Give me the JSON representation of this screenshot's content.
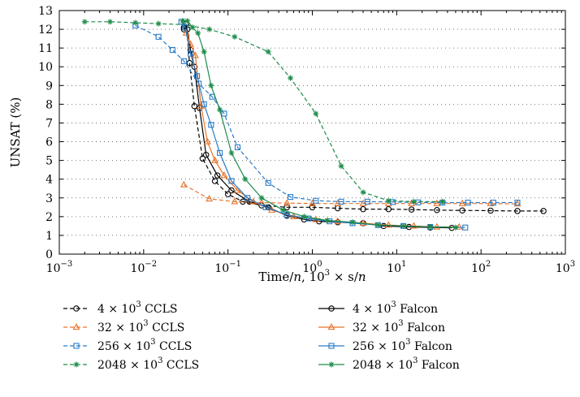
{
  "chart_data": {
    "type": "line",
    "xlabel": {
      "prefix": "Time/",
      "var": "n",
      "middle": ", 10",
      "exp": "3",
      "suffix": " × s/",
      "var2": "n"
    },
    "ylabel": "UNSAT (%)",
    "xscale": "log",
    "xlim": [
      0.001,
      1000
    ],
    "ylim": [
      0,
      13
    ],
    "grid": "dotted horizontal",
    "x_ticks": [
      {
        "value": 0.001,
        "base": "10",
        "exp": "−3"
      },
      {
        "value": 0.01,
        "base": "10",
        "exp": "−2"
      },
      {
        "value": 0.1,
        "base": "10",
        "exp": "−1"
      },
      {
        "value": 1,
        "base": "10",
        "exp": "0"
      },
      {
        "value": 10,
        "base": "10",
        "exp": "1"
      },
      {
        "value": 100,
        "base": "10",
        "exp": "2"
      },
      {
        "value": 1000,
        "base": "10",
        "exp": "3"
      }
    ],
    "y_ticks": [
      "0",
      "1",
      "2",
      "3",
      "4",
      "5",
      "6",
      "7",
      "8",
      "9",
      "10",
      "11",
      "12",
      "13"
    ],
    "legend_position": "bottom",
    "series": [
      {
        "name_pre": "4 × 10",
        "name_exp": "3",
        "name_post": " CCLS",
        "color": "#000000",
        "dash": true,
        "marker": "circle",
        "x": [
          0.03,
          0.032,
          0.035,
          0.04,
          0.05,
          0.07,
          0.1,
          0.15,
          0.25,
          0.5,
          1,
          2,
          4,
          8,
          15,
          30,
          60,
          130,
          270,
          550
        ],
        "y": [
          12.0,
          12.3,
          10.2,
          7.9,
          5.1,
          3.9,
          3.2,
          2.8,
          2.6,
          2.5,
          2.5,
          2.45,
          2.4,
          2.4,
          2.38,
          2.35,
          2.33,
          2.32,
          2.3,
          2.3
        ]
      },
      {
        "name_pre": "32 × 10",
        "name_exp": "3",
        "name_post": " CCLS",
        "color": "#e8732a",
        "dash": true,
        "marker": "triangle",
        "x": [
          0.03,
          0.06,
          0.12,
          0.25,
          0.5,
          1,
          2,
          4,
          8,
          15,
          30,
          60,
          130,
          270
        ],
        "y": [
          3.7,
          2.95,
          2.8,
          2.75,
          2.72,
          2.7,
          2.7,
          2.7,
          2.7,
          2.7,
          2.7,
          2.7,
          2.7,
          2.68
        ]
      },
      {
        "name_pre": "256 × 10",
        "name_exp": "3",
        "name_post": " CCLS",
        "color": "#2b7cc7",
        "dash": true,
        "marker": "square",
        "x": [
          0.008,
          0.015,
          0.022,
          0.03,
          0.045,
          0.065,
          0.09,
          0.13,
          0.3,
          0.55,
          1.1,
          2.2,
          4.5,
          9,
          18,
          35,
          70,
          140,
          270
        ],
        "y": [
          12.2,
          11.6,
          10.9,
          10.3,
          9.1,
          8.4,
          7.5,
          5.7,
          3.8,
          3.05,
          2.85,
          2.8,
          2.8,
          2.78,
          2.76,
          2.75,
          2.75,
          2.75,
          2.75
        ]
      },
      {
        "name_pre": "2048 × 10",
        "name_exp": "3",
        "name_post": " CCLS",
        "color": "#1d8c4a",
        "dash": true,
        "marker": "star",
        "x": [
          0.002,
          0.004,
          0.008,
          0.015,
          0.03,
          0.06,
          0.12,
          0.3,
          0.55,
          1.1,
          2.2,
          4,
          8,
          16,
          35
        ],
        "y": [
          12.4,
          12.4,
          12.35,
          12.3,
          12.25,
          12.0,
          11.6,
          10.8,
          9.4,
          7.5,
          4.7,
          3.3,
          2.85,
          2.8,
          2.8
        ]
      },
      {
        "name_pre": "4 × 10",
        "name_exp": "3",
        "name_post": " Falcon",
        "color": "#000000",
        "dash": false,
        "marker": "circle",
        "x": [
          0.03,
          0.033,
          0.036,
          0.04,
          0.046,
          0.055,
          0.075,
          0.11,
          0.18,
          0.3,
          0.5,
          0.8,
          1.2,
          2,
          4,
          7,
          14,
          25,
          45
        ],
        "y": [
          12.1,
          12.0,
          10.9,
          10.0,
          7.8,
          5.3,
          4.2,
          3.4,
          2.8,
          2.5,
          2.05,
          1.85,
          1.75,
          1.7,
          1.65,
          1.5,
          1.45,
          1.42,
          1.4
        ]
      },
      {
        "name_pre": "32 × 10",
        "name_exp": "3",
        "name_post": " Falcon",
        "color": "#e8732a",
        "dash": false,
        "marker": "triangle",
        "x": [
          0.032,
          0.036,
          0.041,
          0.048,
          0.057,
          0.07,
          0.09,
          0.13,
          0.2,
          0.33,
          0.6,
          1.1,
          2,
          4,
          8,
          16,
          30,
          55
        ],
        "y": [
          11.8,
          11.2,
          10.6,
          7.9,
          6.0,
          5.0,
          4.2,
          3.4,
          2.8,
          2.35,
          2.0,
          1.85,
          1.75,
          1.65,
          1.55,
          1.5,
          1.45,
          1.45
        ]
      },
      {
        "name_pre": "256 × 10",
        "name_exp": "3",
        "name_post": " Falcon",
        "color": "#2b7cc7",
        "dash": false,
        "marker": "square",
        "x": [
          0.028,
          0.031,
          0.036,
          0.043,
          0.052,
          0.063,
          0.08,
          0.11,
          0.17,
          0.28,
          0.5,
          0.9,
          1.6,
          3,
          6,
          12,
          25,
          65
        ],
        "y": [
          12.4,
          12.1,
          10.7,
          9.5,
          8.0,
          6.9,
          5.4,
          3.9,
          3.0,
          2.5,
          2.1,
          1.9,
          1.75,
          1.65,
          1.55,
          1.5,
          1.45,
          1.42
        ]
      },
      {
        "name_pre": "2048 × 10",
        "name_exp": "3",
        "name_post": " Falcon",
        "color": "#1d8c4a",
        "dash": false,
        "marker": "star",
        "x": [
          0.029,
          0.033,
          0.038,
          0.044,
          0.052,
          0.063,
          0.08,
          0.11,
          0.16,
          0.25,
          0.45,
          0.8,
          1.5,
          3,
          6,
          12,
          25,
          50
        ],
        "y": [
          12.45,
          12.45,
          12.1,
          11.8,
          10.8,
          9.0,
          7.7,
          5.4,
          4.0,
          3.0,
          2.35,
          2.0,
          1.8,
          1.7,
          1.55,
          1.5,
          1.45,
          1.42
        ]
      }
    ]
  }
}
